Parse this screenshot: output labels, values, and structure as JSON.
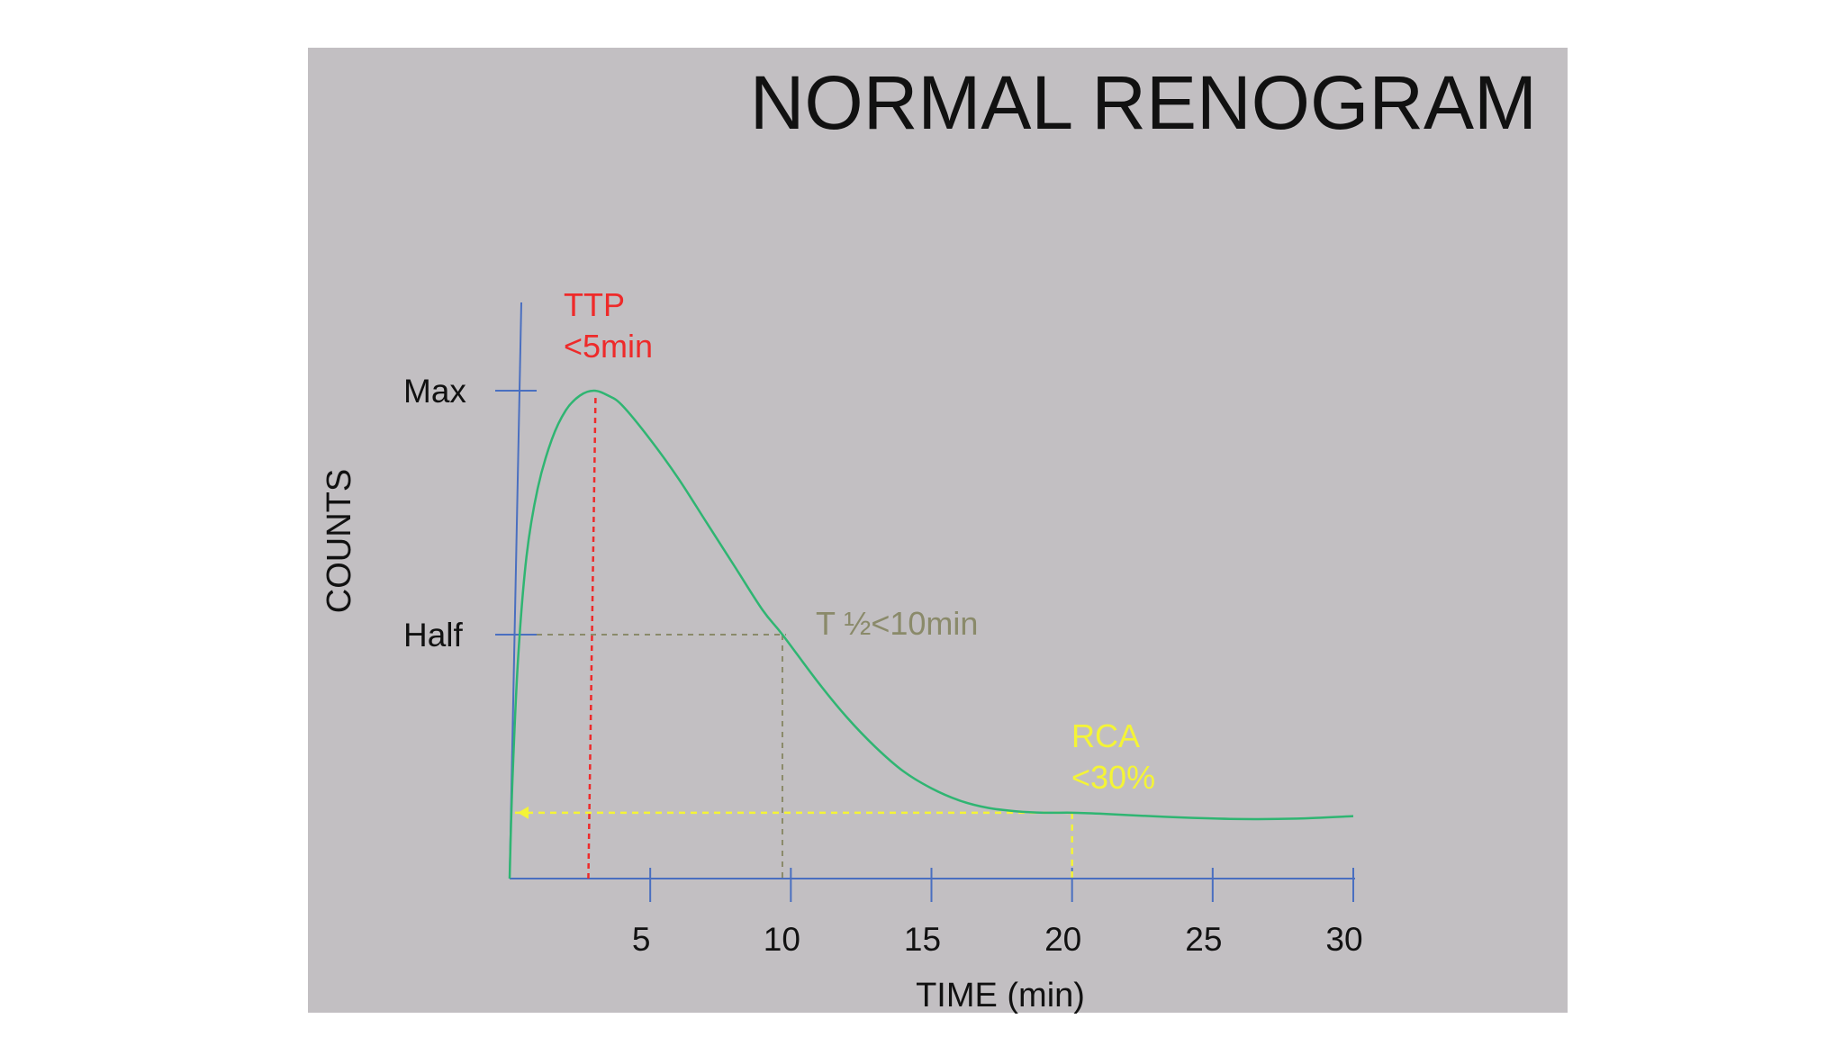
{
  "chart_data": {
    "type": "line",
    "title": "NORMAL RENOGRAM",
    "xlabel": "TIME (min)",
    "ylabel": "COUNTS",
    "x_ticks": [
      5,
      10,
      15,
      20,
      25,
      30
    ],
    "xlim": [
      0,
      30
    ],
    "y_ticks": [
      {
        "label": "Max",
        "value": 1.0
      },
      {
        "label": "Half",
        "value": 0.5
      }
    ],
    "ylim": [
      0,
      1.05
    ],
    "series": [
      {
        "color": "#2fb572",
        "x": [
          0,
          0.1,
          0.3,
          0.6,
          1.0,
          1.5,
          2.0,
          2.5,
          3.0,
          3.5,
          4.0,
          5.0,
          6.0,
          7.0,
          8.0,
          9.0,
          9.7,
          11.0,
          12.0,
          13.0,
          14.0,
          15.0,
          16.0,
          17.0,
          18.0,
          19.0,
          20.0,
          21.0,
          22.0,
          24.0,
          26.0,
          28.0,
          30.0
        ],
        "y": [
          0.0,
          0.2,
          0.45,
          0.66,
          0.8,
          0.9,
          0.96,
          0.99,
          1.0,
          0.99,
          0.97,
          0.9,
          0.82,
          0.73,
          0.64,
          0.55,
          0.5,
          0.4,
          0.33,
          0.27,
          0.22,
          0.185,
          0.16,
          0.145,
          0.138,
          0.135,
          0.135,
          0.133,
          0.13,
          0.125,
          0.122,
          0.123,
          0.128
        ]
      }
    ],
    "annotations": [
      {
        "lines": [
          "TTP",
          "<5min"
        ],
        "color": "#ee2a2a",
        "x": 2.8
      },
      {
        "lines": [
          "T ½<10min"
        ],
        "color": "#8a8a6a",
        "x": 9.7,
        "y": 0.5
      },
      {
        "lines": [
          "RCA",
          "<30%"
        ],
        "color": "#f4f436",
        "x": 20.0,
        "y": 0.135
      }
    ],
    "grid": false,
    "axis_color": "#4a6fc0"
  }
}
